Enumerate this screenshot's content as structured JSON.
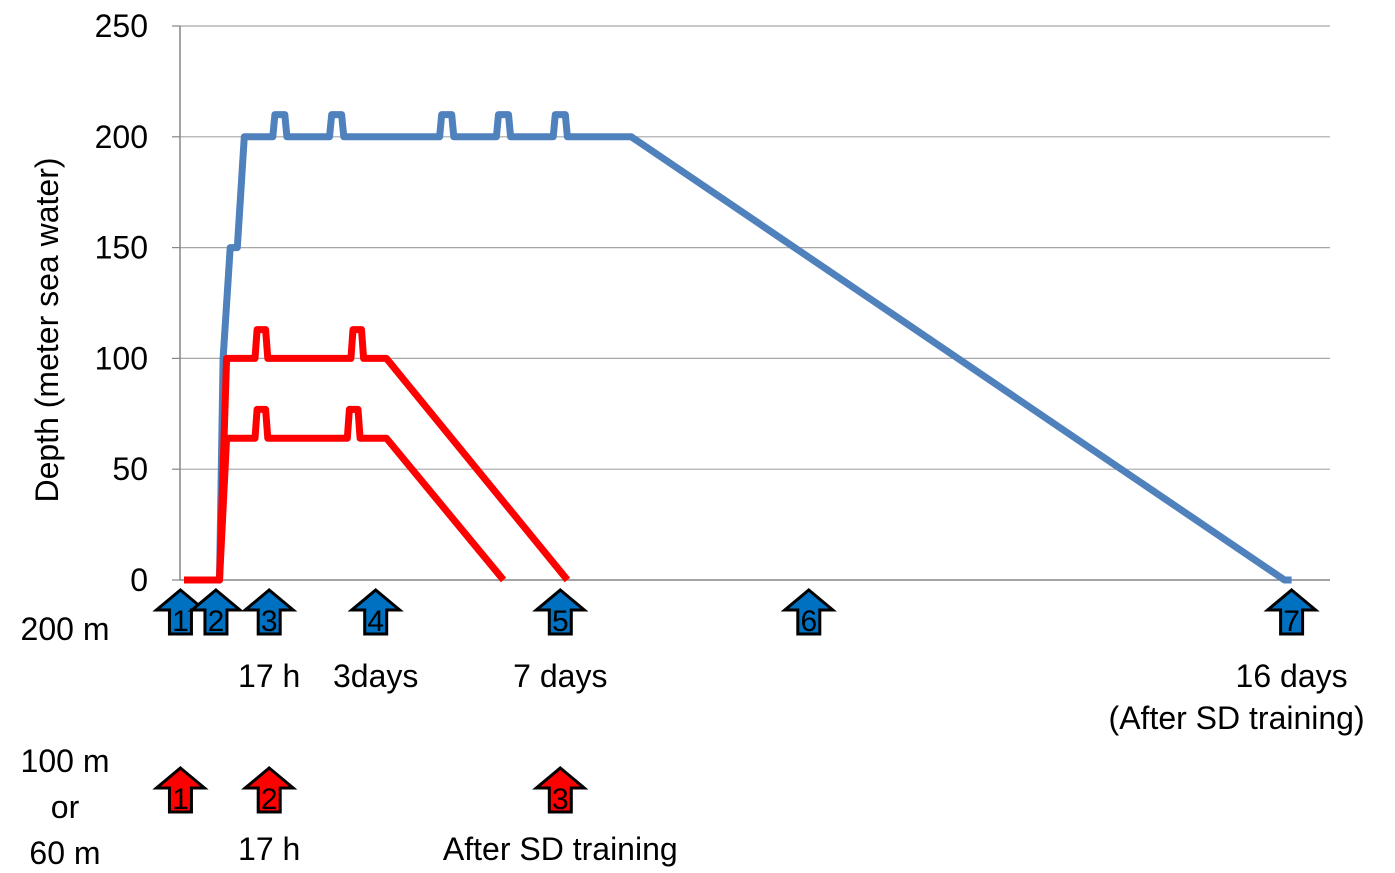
{
  "chart_data": {
    "type": "line",
    "ylabel": "Depth (meter sea water)",
    "xlabel": "",
    "ylim": [
      0,
      250
    ],
    "yticks": [
      "0",
      "50",
      "100",
      "150",
      "200",
      "250"
    ],
    "grid": true,
    "x_units": "days",
    "xlim": [
      -0.17,
      16.5
    ],
    "series": [
      {
        "color": "#4F81BD",
        "points": [
          [
            0,
            0
          ],
          [
            0.5,
            0
          ],
          [
            0.55,
            100
          ],
          [
            0.65,
            150
          ],
          [
            0.75,
            150
          ],
          [
            0.85,
            200
          ],
          [
            1.25,
            200
          ],
          [
            1.28,
            210
          ],
          [
            1.42,
            210
          ],
          [
            1.45,
            200
          ],
          [
            2.05,
            200
          ],
          [
            2.08,
            210
          ],
          [
            2.22,
            210
          ],
          [
            2.25,
            200
          ],
          [
            3.6,
            200
          ],
          [
            3.63,
            210
          ],
          [
            3.77,
            210
          ],
          [
            3.8,
            200
          ],
          [
            4.4,
            200
          ],
          [
            4.43,
            210
          ],
          [
            4.57,
            210
          ],
          [
            4.6,
            200
          ],
          [
            5.2,
            200
          ],
          [
            5.23,
            210
          ],
          [
            5.37,
            210
          ],
          [
            5.4,
            200
          ],
          [
            6.3,
            200
          ],
          [
            15.5,
            0
          ],
          [
            15.6,
            0
          ]
        ]
      },
      {
        "color": "#FF0000",
        "points": [
          [
            0,
            0
          ],
          [
            0.5,
            0
          ],
          [
            0.6,
            100
          ],
          [
            1.0,
            100
          ],
          [
            1.03,
            113
          ],
          [
            1.15,
            113
          ],
          [
            1.18,
            100
          ],
          [
            2.35,
            100
          ],
          [
            2.38,
            113
          ],
          [
            2.5,
            113
          ],
          [
            2.53,
            100
          ],
          [
            2.85,
            100
          ],
          [
            5.4,
            0
          ]
        ]
      },
      {
        "color": "#FF0000",
        "points": [
          [
            0,
            0
          ],
          [
            0.5,
            0
          ],
          [
            0.6,
            64
          ],
          [
            1.0,
            64
          ],
          [
            1.03,
            77
          ],
          [
            1.15,
            77
          ],
          [
            1.18,
            64
          ],
          [
            2.3,
            64
          ],
          [
            2.33,
            77
          ],
          [
            2.45,
            77
          ],
          [
            2.48,
            64
          ],
          [
            2.85,
            64
          ],
          [
            4.5,
            0
          ]
        ]
      }
    ],
    "timepoints_200m": {
      "label": "200 m",
      "color": "#0070C0",
      "arrows": [
        {
          "num": "1",
          "x": -0.05,
          "caption": "",
          "caption2": ""
        },
        {
          "num": "2",
          "x": 0.45,
          "caption": "",
          "caption2": ""
        },
        {
          "num": "3",
          "x": 1.2,
          "caption": "17 h",
          "caption2": ""
        },
        {
          "num": "4",
          "x": 2.7,
          "caption": "3days",
          "caption2": ""
        },
        {
          "num": "5",
          "x": 5.3,
          "caption": "7 days",
          "caption2": ""
        },
        {
          "num": "6",
          "x": 8.8,
          "caption": "",
          "caption2": ""
        },
        {
          "num": "7",
          "x": 15.6,
          "caption": "16 days",
          "caption2": "(After SD training)"
        }
      ]
    },
    "timepoints_100_60m": {
      "label_lines": [
        "100 m",
        "or",
        "60 m"
      ],
      "color": "#FF0000",
      "arrows": [
        {
          "num": "1",
          "x": -0.05,
          "caption": ""
        },
        {
          "num": "2",
          "x": 1.2,
          "caption": "17 h"
        },
        {
          "num": "3",
          "x": 5.3,
          "caption": "After SD training"
        }
      ]
    }
  }
}
